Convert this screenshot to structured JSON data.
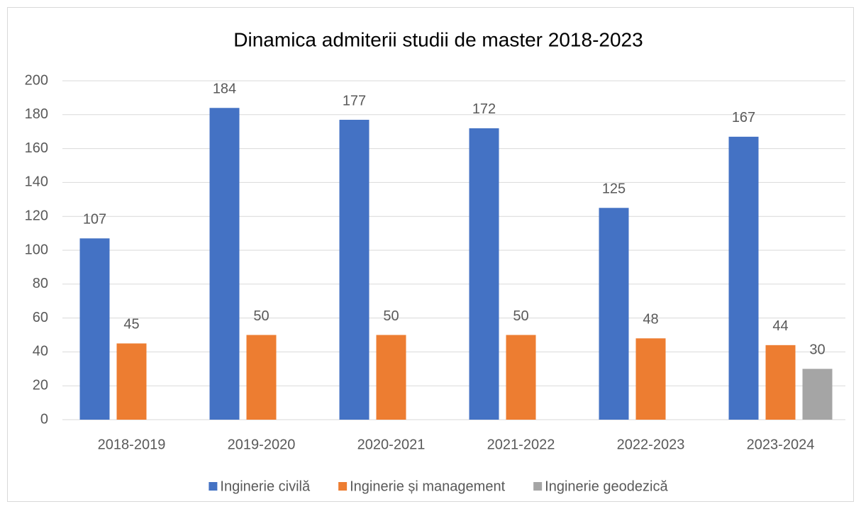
{
  "chart_data": {
    "type": "bar",
    "title": "Dinamica admiterii studii de master 2018-2023",
    "categories": [
      "2018-2019",
      "2019-2020",
      "2020-2021",
      "2021-2022",
      "2022-2023",
      "2023-2024"
    ],
    "series": [
      {
        "name": "Inginerie civilă",
        "color": "#4472c4",
        "values": [
          107,
          184,
          177,
          172,
          125,
          167
        ]
      },
      {
        "name": "Inginerie și management",
        "color": "#ed7d31",
        "values": [
          45,
          50,
          50,
          50,
          48,
          44
        ]
      },
      {
        "name": "Inginerie geodezică",
        "color": "#a5a5a5",
        "values": [
          null,
          null,
          null,
          null,
          null,
          30
        ]
      }
    ],
    "ylim": [
      0,
      200
    ],
    "yticks": [
      0,
      20,
      40,
      60,
      80,
      100,
      120,
      140,
      160,
      180,
      200
    ],
    "grid": true,
    "legend": "bottom"
  }
}
